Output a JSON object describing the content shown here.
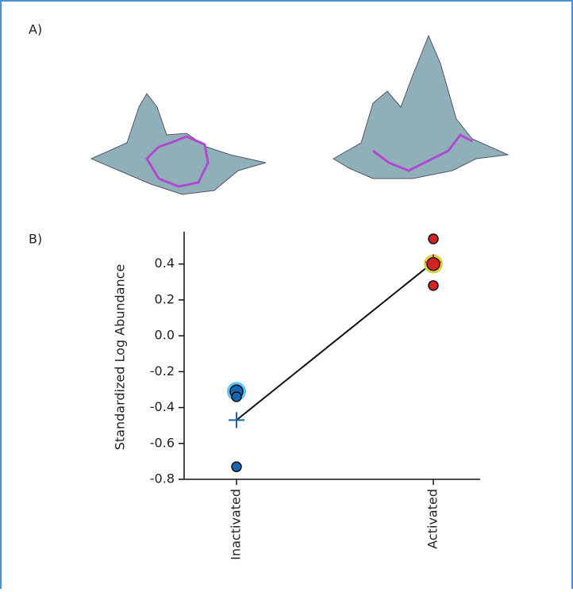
{
  "panels": {
    "a_label": "A)",
    "b_label": "B)"
  },
  "chart_data": {
    "type": "strip",
    "ylabel": "Standardized Log Abundance",
    "categories": [
      "Inactivated",
      "Activated"
    ],
    "points": [
      [
        -0.31,
        -0.34,
        -0.73
      ],
      [
        0.54,
        0.4,
        0.28
      ]
    ],
    "highlight": [
      0,
      1
    ],
    "means": [
      -0.47,
      0.41
    ],
    "colors": [
      "#1565b0",
      "#d42323"
    ],
    "highlight_colors": [
      "#5ec4ee",
      "#d8cf4a"
    ],
    "line_color": "#111111",
    "ylim": [
      -0.8,
      0.58
    ],
    "yticks": [
      {
        "value": -0.8,
        "label": "-0.8"
      },
      {
        "value": -0.6,
        "label": "-0.6"
      },
      {
        "value": -0.4,
        "label": "-0.4"
      },
      {
        "value": -0.2,
        "label": "-0.2"
      },
      {
        "value": 0,
        "label": "0.0"
      },
      {
        "value": 0.2,
        "label": "0.2"
      },
      {
        "value": 0.4,
        "label": "0.4"
      }
    ]
  }
}
